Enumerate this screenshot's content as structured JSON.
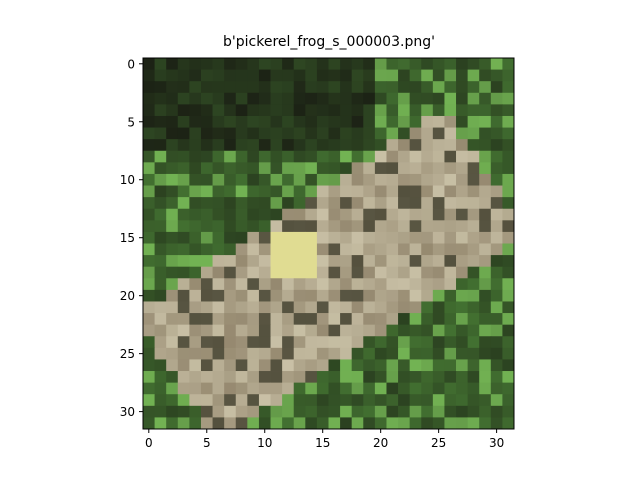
{
  "chart_data": {
    "type": "heatmap",
    "title": "b'pickerel_frog_s_000003.png'",
    "xlabel": "",
    "ylabel": "",
    "xlim": [
      -0.5,
      31.5
    ],
    "ylim": [
      31.5,
      -0.5
    ],
    "x_ticks": [
      0,
      5,
      10,
      15,
      20,
      25,
      30
    ],
    "y_ticks": [
      0,
      5,
      10,
      15,
      20,
      25,
      30
    ],
    "x_tick_labels": [
      "0",
      "5",
      "10",
      "15",
      "20",
      "25",
      "30"
    ],
    "y_tick_labels": [
      "0",
      "5",
      "10",
      "15",
      "20",
      "25",
      "30"
    ],
    "grid": false,
    "legend": "none",
    "image_size": [
      32,
      32
    ],
    "content": "pixelated photo of a frog on green foliage",
    "colors": {
      "dark_background": "#1c2215",
      "foliage_green": "#4f8a3a",
      "light_green": "#7cc35a",
      "frog_body": "#8c7f66",
      "frog_light": "#d8d1b6",
      "highlight_yellow": "#e6e37a"
    }
  }
}
